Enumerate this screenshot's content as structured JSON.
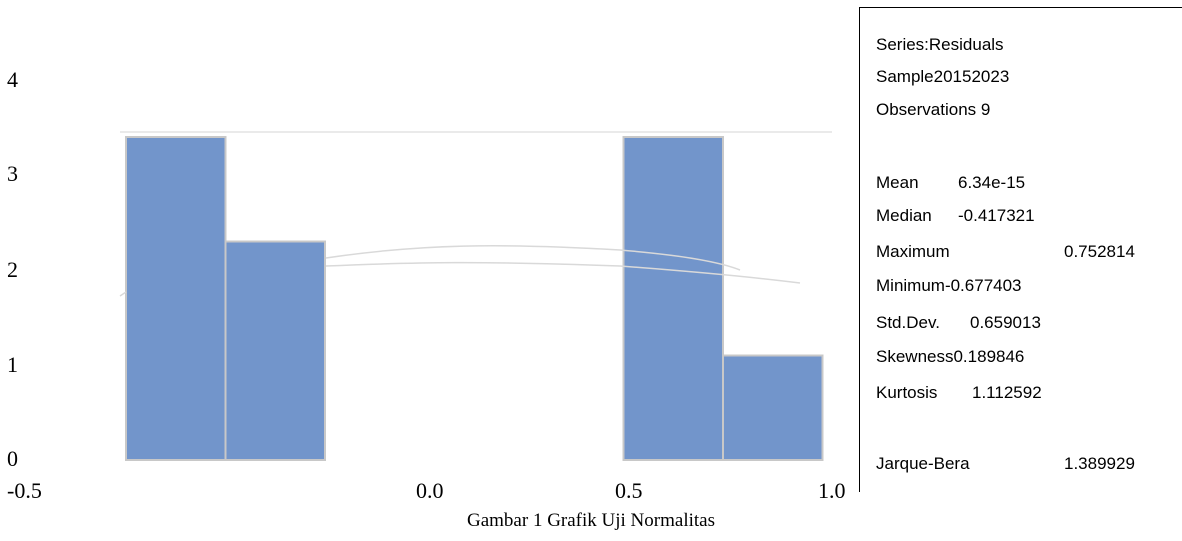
{
  "chart_data": {
    "type": "bar",
    "histogram_bins": [
      {
        "from": -0.75,
        "to": -0.5,
        "count": 3.4
      },
      {
        "from": -0.5,
        "to": -0.25,
        "count": 2.3
      },
      {
        "from": 0.5,
        "to": 0.75,
        "count": 3.4
      },
      {
        "from": 0.75,
        "to": 1.0,
        "count": 1.1
      }
    ],
    "y_ticks": [
      "0",
      "1",
      "2",
      "3",
      "4"
    ],
    "x_ticks": [
      "-0.5",
      "0.0",
      "0.5",
      "1.0"
    ],
    "ylim": [
      0,
      4
    ],
    "bar_color": "#7295cb",
    "grid": true
  },
  "stats": {
    "series": "Series:Residuals",
    "sample": "Sample20152023",
    "observations": "Observations 9",
    "mean_label": "Mean",
    "mean_value": "6.34e-15",
    "median_label": "Median",
    "median_value": "-0.417321",
    "maximum_label": "Maximum",
    "maximum_value": "0.752814",
    "minimum": "Minimum-0.677403",
    "stddev_label": "Std.Dev.",
    "stddev_value": "0.659013",
    "skewness": "Skewness0.189846",
    "kurtosis_label": "Kurtosis",
    "kurtosis_value": "1.112592",
    "jb_label": "Jarque-Bera",
    "jb_value": "1.389929"
  },
  "caption": "Gambar 1 Grafik Uji Normalitas"
}
